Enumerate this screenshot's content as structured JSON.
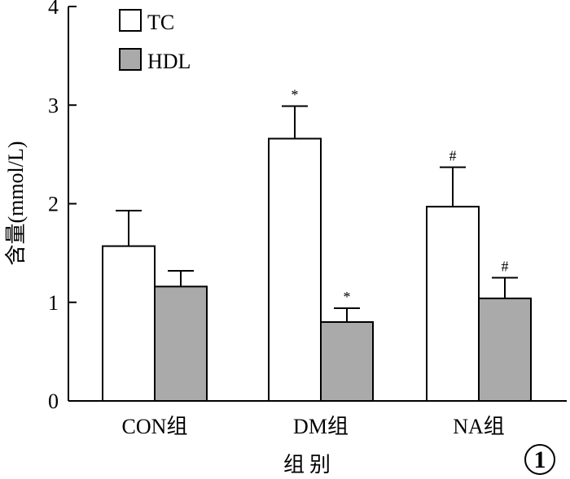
{
  "chart_data": {
    "type": "bar",
    "categories": [
      "CON组",
      "DM组",
      "NA组"
    ],
    "series": [
      {
        "name": "TC",
        "values": [
          1.57,
          2.66,
          1.97
        ],
        "errors": [
          0.36,
          0.33,
          0.4
        ],
        "annotations": [
          "",
          "*",
          "#"
        ],
        "color": "#ffffff"
      },
      {
        "name": "HDL",
        "values": [
          1.16,
          0.8,
          1.04
        ],
        "errors": [
          0.16,
          0.14,
          0.21
        ],
        "annotations": [
          "",
          "*",
          "#"
        ],
        "color": "#aaaaaa"
      }
    ],
    "xlabel": "组别",
    "ylabel": "含量(mmol/L)",
    "ylim": [
      0,
      4
    ],
    "yticks": [
      0,
      1,
      2,
      3,
      4
    ],
    "grid": false,
    "legend_position": "top-left"
  },
  "badge": "1"
}
